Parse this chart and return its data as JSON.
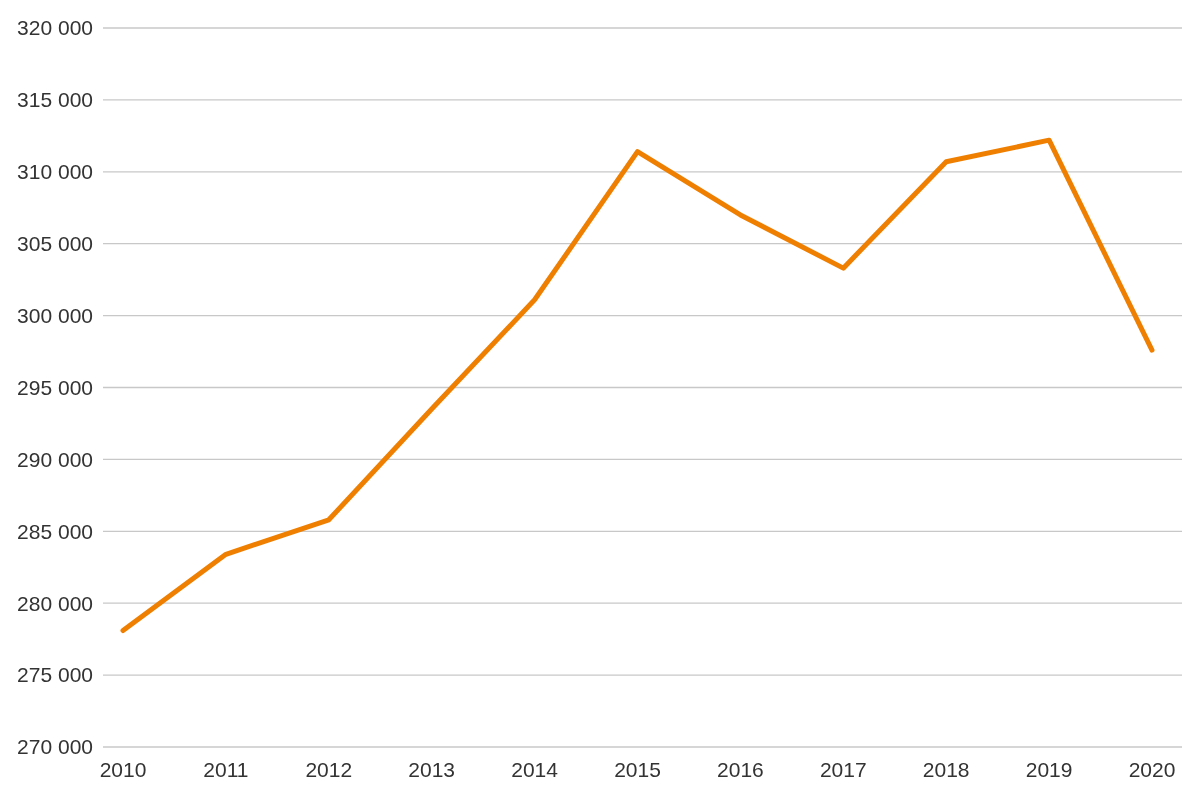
{
  "chart_data": {
    "type": "line",
    "categories": [
      "2010",
      "2011",
      "2012",
      "2013",
      "2014",
      "2015",
      "2016",
      "2017",
      "2018",
      "2019",
      "2020"
    ],
    "series": [
      {
        "color": "#ef7f01",
        "values": [
          278100,
          283400,
          285800,
          293500,
          301100,
          311400,
          307000,
          303300,
          310700,
          312200,
          297600
        ]
      }
    ],
    "ylim": [
      270000,
      320000
    ],
    "yticks": [
      {
        "value": 270000,
        "label": "270 000"
      },
      {
        "value": 275000,
        "label": "275 000"
      },
      {
        "value": 280000,
        "label": "280 000"
      },
      {
        "value": 285000,
        "label": "285 000"
      },
      {
        "value": 290000,
        "label": "290 000"
      },
      {
        "value": 295000,
        "label": "295 000"
      },
      {
        "value": 300000,
        "label": "300 000"
      },
      {
        "value": 305000,
        "label": "305 000"
      },
      {
        "value": 310000,
        "label": "310 000"
      },
      {
        "value": 315000,
        "label": "315 000"
      },
      {
        "value": 320000,
        "label": "320 000"
      }
    ],
    "grid": "y",
    "marker": "none",
    "line_style": "solid"
  }
}
